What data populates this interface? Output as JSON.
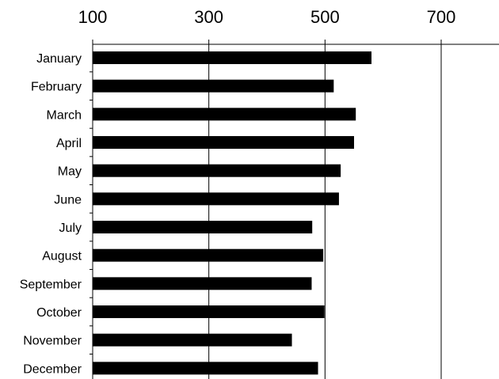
{
  "chart_data": {
    "type": "bar",
    "orientation": "horizontal",
    "categories": [
      "January",
      "February",
      "March",
      "April",
      "May",
      "June",
      "July",
      "August",
      "September",
      "October",
      "November",
      "December"
    ],
    "values": [
      580,
      515,
      553,
      550,
      527,
      524,
      478,
      497,
      477,
      499,
      443,
      488
    ],
    "xlim": [
      100,
      800
    ],
    "xticks": [
      100,
      300,
      500,
      700
    ],
    "grid": "vertical major lines",
    "legend": "none",
    "bar_color": "#000000"
  }
}
